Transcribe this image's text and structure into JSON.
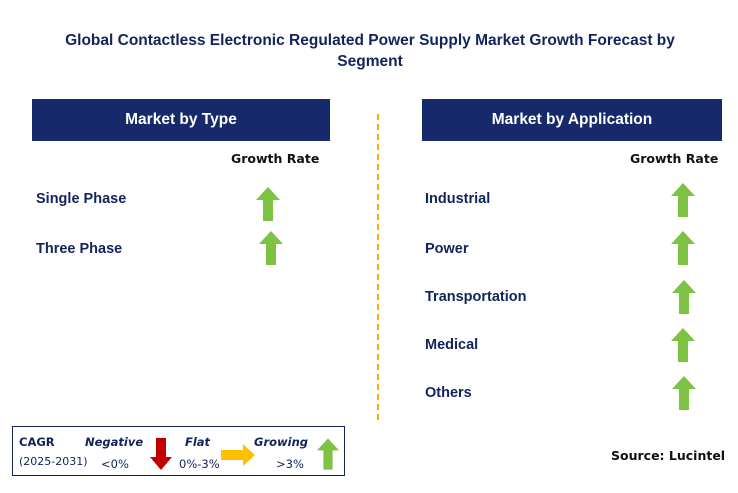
{
  "title": "Global Contactless Electronic Regulated Power Supply Market Growth Forecast by Segment",
  "colors": {
    "header_bg": "#162a6b",
    "up_arrow": "#7dc242",
    "down_arrow": "#c00000",
    "flat_arrow": "#ffc000",
    "divider": "#f2b400"
  },
  "type_panel": {
    "header": "Market by Type",
    "column_header": "Growth Rate",
    "rows": [
      {
        "label": "Single Phase",
        "trend": "growing",
        "icon": "up-arrow-icon"
      },
      {
        "label": "Three Phase",
        "trend": "growing",
        "icon": "up-arrow-icon"
      }
    ]
  },
  "application_panel": {
    "header": "Market by Application",
    "column_header": "Growth Rate",
    "rows": [
      {
        "label": "Industrial",
        "trend": "growing",
        "icon": "up-arrow-icon"
      },
      {
        "label": "Power",
        "trend": "growing",
        "icon": "up-arrow-icon"
      },
      {
        "label": "Transportation",
        "trend": "growing",
        "icon": "up-arrow-icon"
      },
      {
        "label": "Medical",
        "trend": "growing",
        "icon": "up-arrow-icon"
      },
      {
        "label": "Others",
        "trend": "growing",
        "icon": "up-arrow-icon"
      }
    ]
  },
  "legend": {
    "cagr_label": "CAGR",
    "period": "(2025-2031)",
    "negative": {
      "label": "Negative",
      "range": "<0%",
      "icon": "down-arrow-icon"
    },
    "flat": {
      "label": "Flat",
      "range": "0%-3%",
      "icon": "right-arrow-icon"
    },
    "growing": {
      "label": "Growing",
      "range": ">3%",
      "icon": "up-arrow-icon"
    }
  },
  "source": "Source: Lucintel"
}
